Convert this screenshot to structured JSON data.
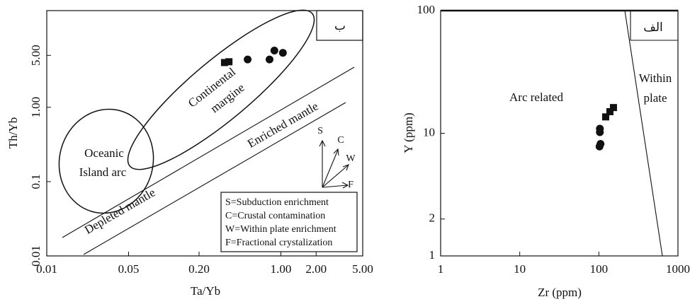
{
  "chart_data": [
    {
      "type": "scatter",
      "xscale": "log",
      "yscale": "log",
      "xlabel": "Ta/Yb",
      "ylabel": "Th/Yb",
      "xlim": [
        0.01,
        5
      ],
      "ylim": [
        0.01,
        20
      ],
      "xticks": [
        0.01,
        0.05,
        {
          "value": 0.2,
          "label": "0.20"
        },
        {
          "value": 1,
          "label": "1.00"
        },
        {
          "value": 2,
          "label": "2.00"
        },
        {
          "value": 5,
          "label": "5.00"
        }
      ],
      "yticks": [
        0.01,
        0.1,
        {
          "value": 1,
          "label": "1.00"
        },
        {
          "value": 5,
          "label": "5.00"
        }
      ],
      "series": [
        {
          "marker": "square",
          "color": "#111111",
          "x": [
            0.33,
            0.36
          ],
          "values": [
            4.0,
            4.1
          ]
        },
        {
          "marker": "circle",
          "color": "#111111",
          "x": [
            0.52,
            0.8,
            0.88,
            1.04
          ],
          "values": [
            4.4,
            4.4,
            5.8,
            5.4
          ]
        }
      ],
      "annotations": [
        "ب",
        "Oceanic",
        "Island arc",
        "Continental",
        "margine",
        "Enriched mantle",
        "Depleted mantle",
        "S",
        "C",
        "W",
        "F"
      ],
      "legend_notes": [
        "S=Subduction enrichment",
        "C=Crustal contamination",
        "W=Within plate enrichment",
        "F=Fractional crystalization"
      ]
    },
    {
      "type": "scatter",
      "xscale": "log",
      "yscale": "log",
      "xlabel": "Zr (ppm)",
      "ylabel": "Y (ppm)",
      "xlim": [
        1,
        1000
      ],
      "ylim": [
        1,
        100
      ],
      "xticks": [
        1,
        10,
        100,
        1000
      ],
      "yticks": [
        1,
        2,
        10,
        100
      ],
      "series": [
        {
          "marker": "square",
          "color": "#111111",
          "x": [
            122,
            138,
            153
          ],
          "values": [
            13.6,
            15.0,
            16.2
          ]
        },
        {
          "marker": "circle",
          "color": "#111111",
          "x": [
            103,
            103,
            105,
            102
          ],
          "values": [
            10.9,
            10.2,
            8.2,
            7.8
          ]
        }
      ],
      "annotations": [
        "الف",
        "Arc related",
        "Within",
        "plate"
      ]
    }
  ]
}
